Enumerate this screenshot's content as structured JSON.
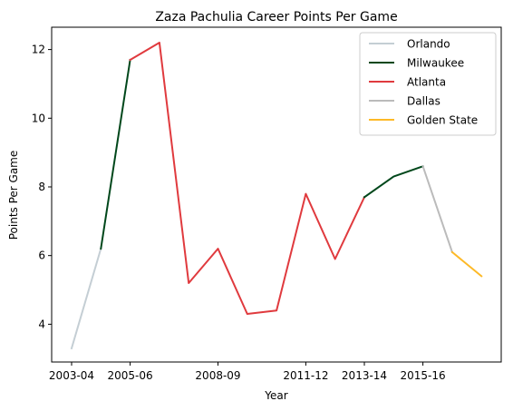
{
  "chart_data": {
    "type": "line",
    "title": "Zaza Pachulia Career Points Per Game",
    "xlabel": "Year",
    "ylabel": "Points Per Game",
    "seasons": [
      "2003-04",
      "2004-05",
      "2005-06",
      "2006-07",
      "2007-08",
      "2008-09",
      "2009-10",
      "2010-11",
      "2011-12",
      "2012-13",
      "2013-14",
      "2014-15",
      "2015-16",
      "2016-17",
      "2017-18"
    ],
    "x_ticks": [
      "2003-04",
      "2005-06",
      "2008-09",
      "2011-12",
      "2013-14",
      "2015-16"
    ],
    "x_tick_indices": [
      0,
      2,
      5,
      8,
      10,
      12
    ],
    "ylim": [
      2.9,
      12.65
    ],
    "y_ticks": [
      4,
      6,
      8,
      10,
      12
    ],
    "grid": false,
    "legend_position": "top-right",
    "series": [
      {
        "name": "Orlando",
        "color": "#c4ced4",
        "points": [
          [
            0,
            3.3
          ],
          [
            1,
            6.2
          ]
        ]
      },
      {
        "name": "Milwaukee",
        "color": "#00471b",
        "points": [
          [
            1,
            6.2
          ],
          [
            2,
            11.7
          ]
        ]
      },
      {
        "name": "Atlanta",
        "color": "#e03a3e",
        "points": [
          [
            2,
            11.7
          ],
          [
            3,
            12.2
          ],
          [
            4,
            5.2
          ],
          [
            5,
            6.2
          ],
          [
            6,
            4.3
          ],
          [
            7,
            4.4
          ],
          [
            8,
            7.8
          ],
          [
            9,
            5.9
          ],
          [
            10,
            7.7
          ]
        ]
      },
      {
        "name": "Milwaukee",
        "color": "#00471b",
        "points": [
          [
            10,
            7.7
          ],
          [
            11,
            8.3
          ],
          [
            12,
            8.6
          ]
        ],
        "in_legend": false
      },
      {
        "name": "Dallas",
        "color": "#bbbbbb",
        "points": [
          [
            12,
            8.6
          ],
          [
            13,
            6.1
          ]
        ]
      },
      {
        "name": "Golden State",
        "color": "#fdb927",
        "points": [
          [
            13,
            6.1
          ],
          [
            14,
            5.4
          ]
        ]
      }
    ]
  }
}
